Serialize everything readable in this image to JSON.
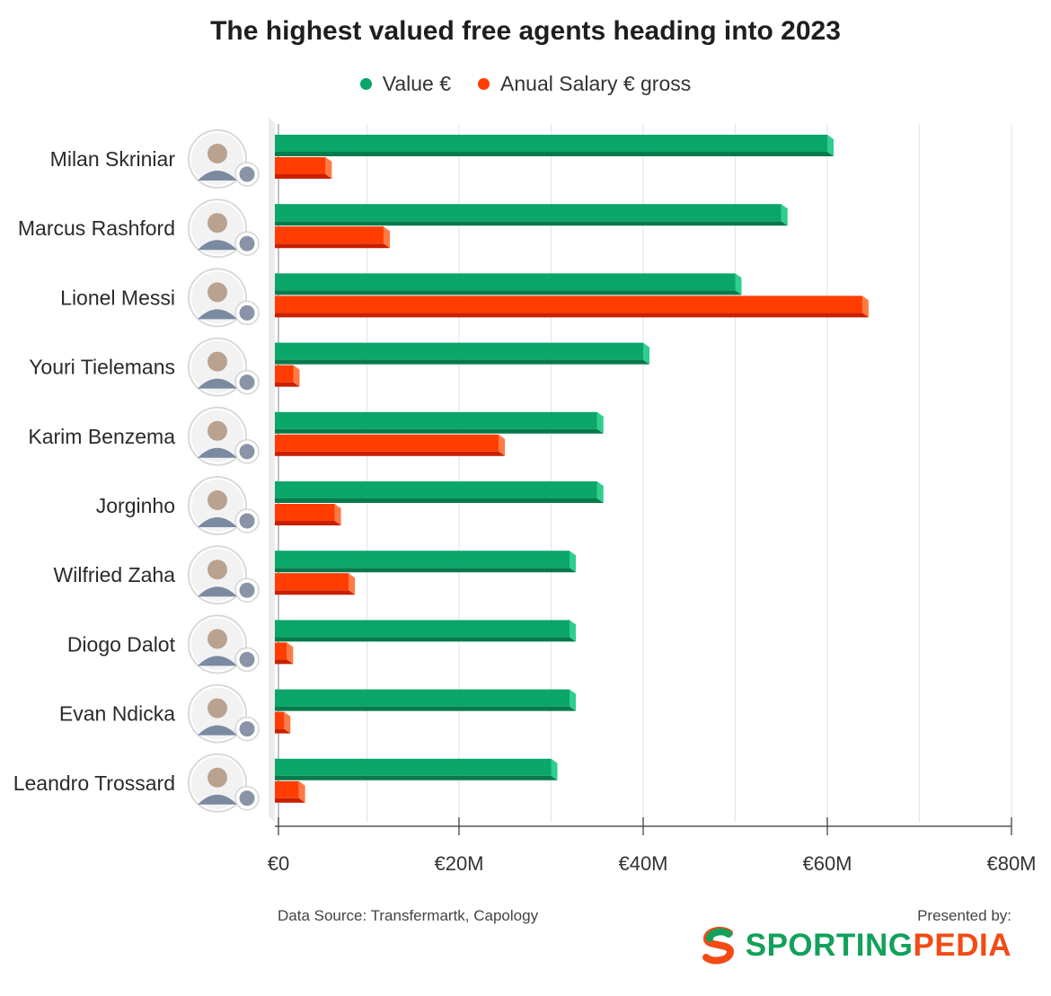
{
  "chart_data": {
    "type": "bar",
    "orientation": "horizontal",
    "title": "The highest valued free agents heading into 2023",
    "categories": [
      "Milan Skriniar",
      "Marcus Rashford",
      "Lionel Messi",
      "Youri Tielemans",
      "Karim Benzema",
      "Jorginho",
      "Wilfried Zaha",
      "Diogo Dalot",
      "Evan Ndicka",
      "Leandro Trossard"
    ],
    "series": [
      {
        "name": "Value €",
        "color": "#0aa66a",
        "values": [
          60,
          55,
          50,
          40,
          35,
          35,
          32,
          32,
          32,
          30
        ]
      },
      {
        "name": "Anual Salary € gross",
        "color": "#ff3d00",
        "values": [
          5.5,
          11.8,
          63.8,
          2.0,
          24.3,
          6.5,
          8.0,
          1.3,
          1.0,
          2.6
        ]
      }
    ],
    "xlim": [
      0,
      80
    ],
    "xticks": [
      "€0",
      "€20M",
      "€40M",
      "€60M",
      "€80M"
    ],
    "xtick_values": [
      0,
      20,
      40,
      60,
      80
    ],
    "grid": true,
    "legend_position": "top-center",
    "icons": [
      "player-avatar",
      "club-badge"
    ]
  },
  "footer": {
    "source": "Data Source: Transfermartk, Capology",
    "presented_by": "Presented by:",
    "brand_part1": "SPORTING",
    "brand_part2": "PEDIA"
  },
  "colors": {
    "value_side": "#2fce8e",
    "value_bottom": "#067a4b",
    "salary_side": "#ff7a45",
    "salary_bottom": "#c91f00",
    "grid": "#e6e6e6",
    "axis": "#333333",
    "brand_green": "#12a15a",
    "brand_orange": "#f24b16"
  }
}
